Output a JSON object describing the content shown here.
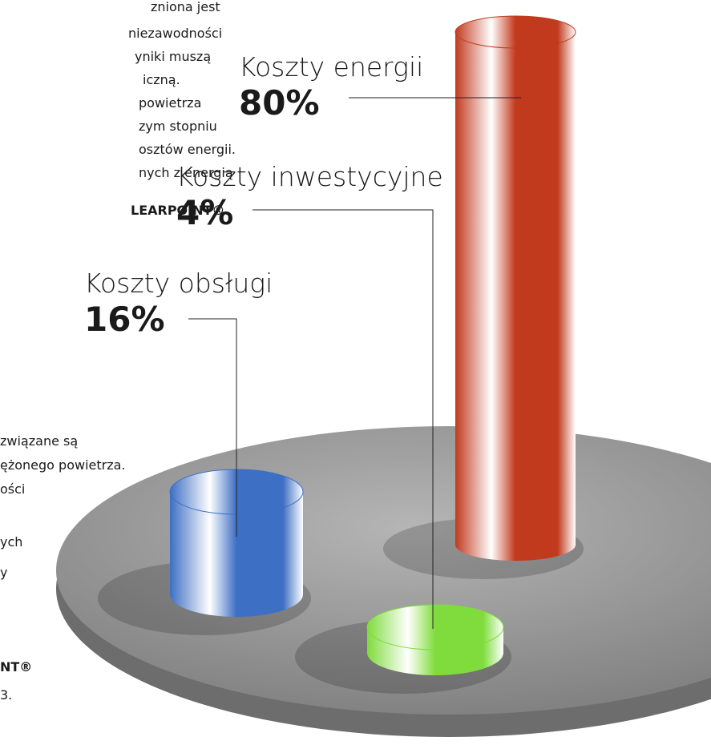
{
  "chart_data": {
    "type": "bar",
    "categories": [
      "Koszty energii",
      "Koszty inwestycyjne",
      "Koszty obsługi"
    ],
    "values": [
      80,
      4,
      16
    ],
    "value_labels": [
      "80%",
      "4%",
      "16%"
    ],
    "colors": [
      "#c23a1e",
      "#7fdc3c",
      "#3d6fc4"
    ]
  },
  "text_fragments": [
    "zniona jest",
    "niezawodności",
    "yniki muszą",
    "iczną.",
    "powietrza",
    "zym stopniu",
    "osztów energii.",
    "nych z energią",
    "LEARPOINT®.",
    "związane są",
    "ężonego powietrza.",
    "ości",
    "ych",
    "y",
    "NT®",
    "3."
  ]
}
